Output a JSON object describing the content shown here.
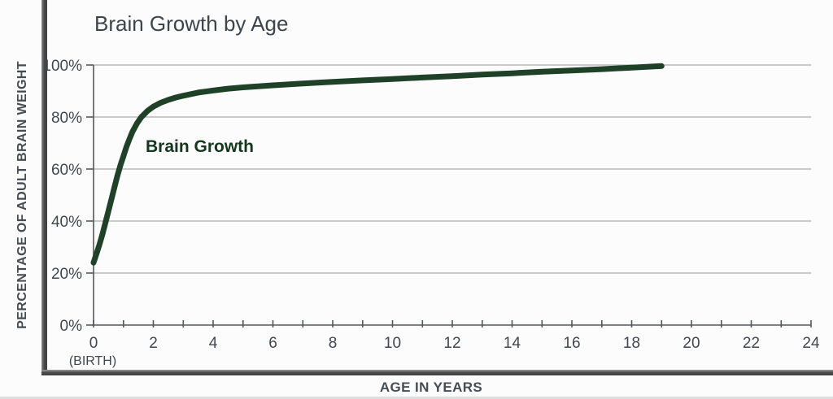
{
  "chart_data": {
    "type": "line",
    "title": "Brain Growth by Age",
    "xlabel": "AGE IN YEARS",
    "ylabel": "PERCENTAGE OF ADULT BRAIN WEIGHT",
    "series": [
      {
        "name": "Brain Growth",
        "points": [
          [
            0,
            24
          ],
          [
            0.1,
            27.5
          ],
          [
            0.2,
            31
          ],
          [
            0.3,
            35
          ],
          [
            0.4,
            39.5
          ],
          [
            0.5,
            44
          ],
          [
            0.6,
            48.5
          ],
          [
            0.7,
            53
          ],
          [
            0.8,
            57.5
          ],
          [
            0.9,
            61.5
          ],
          [
            1,
            65
          ],
          [
            1.1,
            68.5
          ],
          [
            1.2,
            71.5
          ],
          [
            1.3,
            74.3
          ],
          [
            1.45,
            77.5
          ],
          [
            1.6,
            80
          ],
          [
            1.8,
            82.3
          ],
          [
            2,
            84
          ],
          [
            2.25,
            85.5
          ],
          [
            2.5,
            86.6
          ],
          [
            2.75,
            87.5
          ],
          [
            3,
            88.2
          ],
          [
            3.5,
            89.4
          ],
          [
            4,
            90.2
          ],
          [
            4.5,
            90.9
          ],
          [
            5,
            91.4
          ],
          [
            6,
            92.2
          ],
          [
            7,
            92.9
          ],
          [
            8,
            93.5
          ],
          [
            9,
            94.1
          ],
          [
            10,
            94.6
          ],
          [
            11,
            95.2
          ],
          [
            12,
            95.7
          ],
          [
            13,
            96.3
          ],
          [
            14,
            96.8
          ],
          [
            15,
            97.4
          ],
          [
            16,
            97.9
          ],
          [
            17,
            98.4
          ],
          [
            18,
            99
          ],
          [
            19,
            99.6
          ]
        ]
      }
    ],
    "x_axis": {
      "min": 0,
      "max": 24,
      "major_tick_step": 2,
      "minor_tick_step": 1,
      "tick_labels": [
        "0",
        "2",
        "4",
        "6",
        "8",
        "10",
        "12",
        "14",
        "16",
        "18",
        "20",
        "22",
        "24"
      ],
      "birth_note": "(BIRTH)"
    },
    "y_axis": {
      "min": 0,
      "max": 100,
      "tick_step": 20,
      "tick_labels": [
        "0%",
        "20%",
        "40%",
        "60%",
        "80%",
        "100%"
      ]
    },
    "grid": "horizontal-only",
    "legend_position": "inline-label-on-plot"
  },
  "colors": {
    "curve": "#1e4127",
    "series_label_text": "#15371d",
    "title_text": "#3e444c",
    "tick_text": "#42474e",
    "axis_label_text": "#474c53",
    "grid_line": "#ababab",
    "axis_line": "#55585c",
    "frame": "#474747",
    "background": "#fcfcfc"
  }
}
